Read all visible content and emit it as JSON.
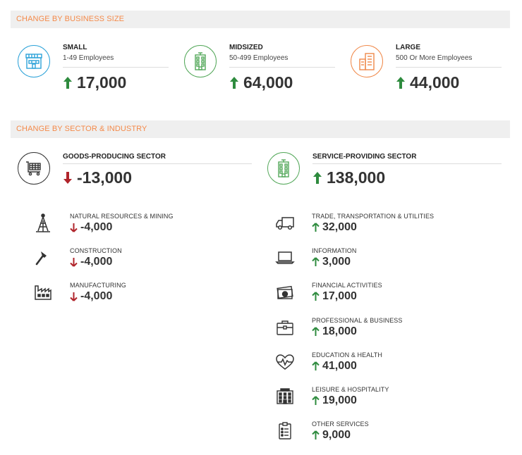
{
  "colors": {
    "accent": "#f48a4a",
    "up": "#2e8b3e",
    "down": "#b0242b",
    "small": "#2ea3d9",
    "midsized": "#54a85a",
    "large": "#f0894a"
  },
  "business_size": {
    "header": "CHANGE BY BUSINESS SIZE",
    "cards": [
      {
        "title": "SMALL",
        "subtitle": "1-49 Employees",
        "value": "17,000",
        "direction": "up",
        "icon": "store-icon"
      },
      {
        "title": "MIDSIZED",
        "subtitle": "50-499 Employees",
        "value": "64,000",
        "direction": "up",
        "icon": "building-icon"
      },
      {
        "title": "LARGE",
        "subtitle": "500 Or More Employees",
        "value": "44,000",
        "direction": "up",
        "icon": "skyscraper-icon"
      }
    ]
  },
  "sector": {
    "header": "CHANGE BY SECTOR & INDUSTRY",
    "goods": {
      "title": "GOODS-PRODUCING SECTOR",
      "value": "-13,000",
      "direction": "down",
      "icon": "cart-icon",
      "industries": [
        {
          "label": "NATURAL RESOURCES & MINING",
          "value": "-4,000",
          "direction": "down",
          "icon": "oil-rig-icon"
        },
        {
          "label": "CONSTRUCTION",
          "value": "-4,000",
          "direction": "down",
          "icon": "hammer-icon"
        },
        {
          "label": "MANUFACTURING",
          "value": "-4,000",
          "direction": "down",
          "icon": "factory-icon"
        }
      ]
    },
    "service": {
      "title": "SERVICE-PROVIDING SECTOR",
      "value": "138,000",
      "direction": "up",
      "icon": "office-building-icon",
      "industries": [
        {
          "label": "TRADE, TRANSPORTATION & UTILITIES",
          "value": "32,000",
          "direction": "up",
          "icon": "truck-icon"
        },
        {
          "label": "INFORMATION",
          "value": "3,000",
          "direction": "up",
          "icon": "laptop-icon"
        },
        {
          "label": "FINANCIAL ACTIVITIES",
          "value": "17,000",
          "direction": "up",
          "icon": "money-icon"
        },
        {
          "label": "PROFESSIONAL & BUSINESS",
          "value": "18,000",
          "direction": "up",
          "icon": "briefcase-icon"
        },
        {
          "label": "EDUCATION & HEALTH",
          "value": "41,000",
          "direction": "up",
          "icon": "heart-pulse-icon"
        },
        {
          "label": "LEISURE & HOSPITALITY",
          "value": "19,000",
          "direction": "up",
          "icon": "hotel-icon"
        },
        {
          "label": "OTHER SERVICES",
          "value": "9,000",
          "direction": "up",
          "icon": "clipboard-icon"
        }
      ]
    }
  }
}
